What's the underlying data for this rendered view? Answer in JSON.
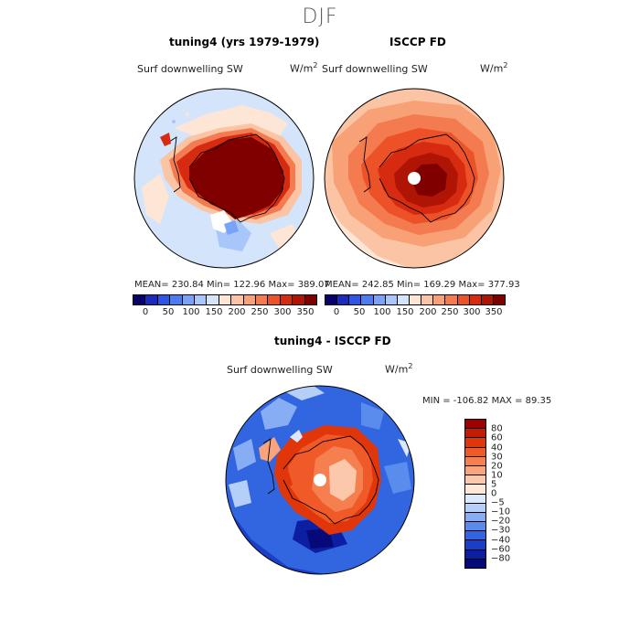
{
  "title": "DJF",
  "panel_left": {
    "title": "tuning4 (yrs 1979-1979)",
    "variable": "Surf downwelling SW",
    "units": "W/m",
    "units_exp": "2",
    "stats": "MEAN= 230.84   Min= 122.96   Max= 389.07"
  },
  "panel_right": {
    "title": "ISCCP FD",
    "variable": "Surf downwelling SW",
    "units": "W/m",
    "units_exp": "2",
    "stats": "MEAN= 242.85   Min= 169.29   Max= 377.93"
  },
  "panel_diff": {
    "title": "tuning4 - ISCCP FD",
    "variable": "Surf downwelling SW",
    "units": "W/m",
    "units_exp": "2",
    "stats": "MIN = -106.82  MAX =  89.35"
  },
  "chart_data": [
    {
      "type": "heatmap",
      "title": "tuning4 (yrs 1979-1979)",
      "projection": "south polar stereographic",
      "variable": "Surf downwelling SW",
      "units": "W/m2",
      "mean": 230.84,
      "min": 122.96,
      "max": 389.07,
      "colorbar": {
        "tick_labels": [
          "0",
          "50",
          "100",
          "150",
          "200",
          "250",
          "300",
          "350"
        ],
        "colors": [
          "#08006b",
          "#1a2bbd",
          "#2e55e6",
          "#4d7bf2",
          "#7aa3f7",
          "#a8c6fa",
          "#d4e4fb",
          "#fde6d6",
          "#fbc4a4",
          "#f8a076",
          "#f47a4f",
          "#ec5128",
          "#d62b10",
          "#b01405",
          "#800000"
        ]
      }
    },
    {
      "type": "heatmap",
      "title": "ISCCP FD",
      "projection": "south polar stereographic",
      "variable": "Surf downwelling SW",
      "units": "W/m2",
      "mean": 242.85,
      "min": 169.29,
      "max": 377.93,
      "colorbar": {
        "tick_labels": [
          "0",
          "50",
          "100",
          "150",
          "200",
          "250",
          "300",
          "350"
        ],
        "colors": [
          "#08006b",
          "#1a2bbd",
          "#2e55e6",
          "#4d7bf2",
          "#7aa3f7",
          "#a8c6fa",
          "#d4e4fb",
          "#fde6d6",
          "#fbc4a4",
          "#f8a076",
          "#f47a4f",
          "#ec5128",
          "#d62b10",
          "#b01405",
          "#800000"
        ]
      }
    },
    {
      "type": "heatmap",
      "title": "tuning4 - ISCCP FD",
      "projection": "south polar stereographic",
      "variable": "Surf downwelling SW",
      "units": "W/m2",
      "min": -106.82,
      "max": 89.35,
      "colorbar": {
        "tick_labels": [
          "80",
          "60",
          "40",
          "30",
          "20",
          "10",
          "5",
          "0",
          "−5",
          "−10",
          "−20",
          "−30",
          "−40",
          "−60",
          "−80"
        ],
        "colors": [
          "#9e0000",
          "#c41c00",
          "#e0360a",
          "#f05a28",
          "#f57f4e",
          "#f9a47c",
          "#fcc8ab",
          "#fde8d8",
          "#dce8fb",
          "#b5cff8",
          "#87aef4",
          "#5a8ced",
          "#3266e0",
          "#1a3fc6",
          "#0c1fa2",
          "#050a78"
        ]
      }
    }
  ]
}
